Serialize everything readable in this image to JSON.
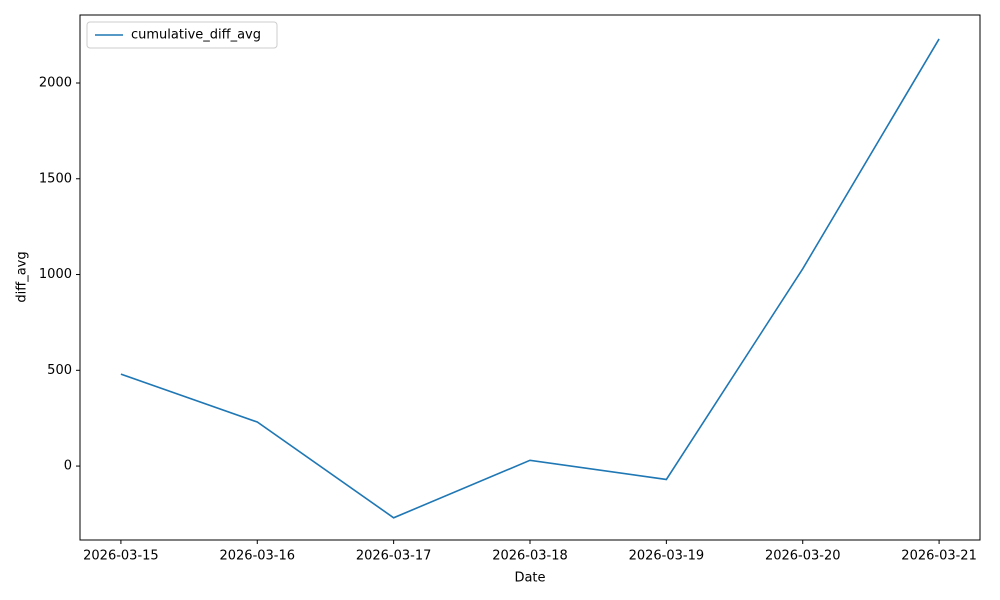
{
  "chart_data": {
    "type": "line",
    "x_label": "Date",
    "y_label": "diff_avg",
    "categories": [
      "2026-03-15",
      "2026-03-16",
      "2026-03-17",
      "2026-03-18",
      "2026-03-19",
      "2026-03-20",
      "2026-03-21"
    ],
    "series": [
      {
        "name": "cumulative_diff_avg",
        "color": "#1f77b4",
        "values": [
          480,
          230,
          -270,
          30,
          -70,
          1030,
          2230
        ]
      }
    ],
    "ylim": [
      -386,
      2355
    ],
    "yticks": [
      0,
      500,
      1000,
      1500,
      2000
    ],
    "legend": "upper left",
    "grid": false
  }
}
